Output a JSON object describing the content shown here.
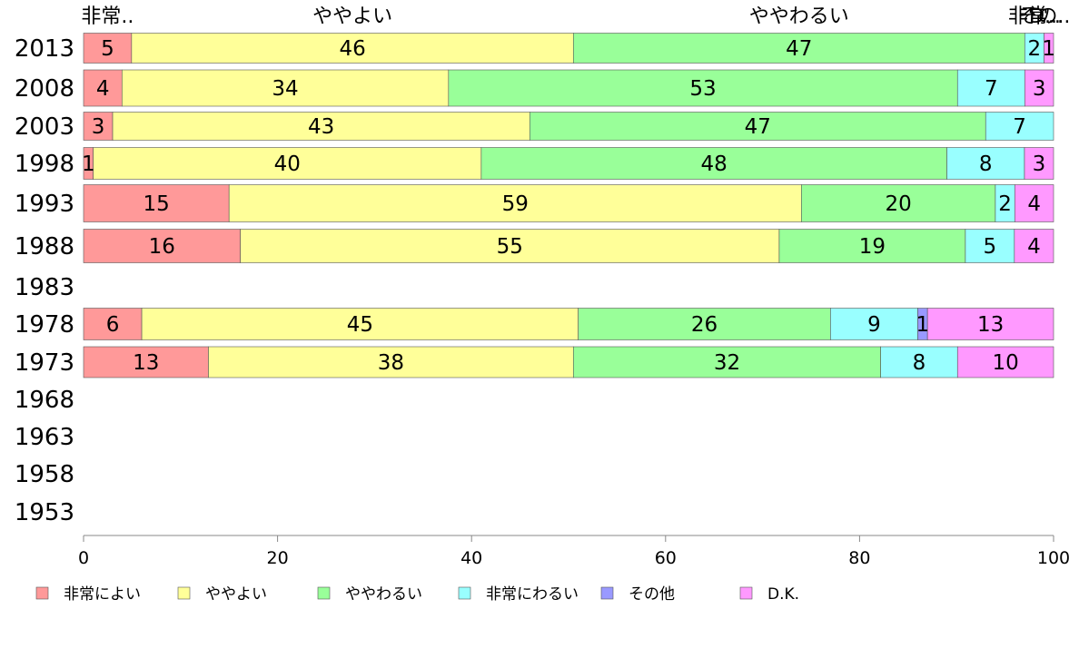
{
  "chart_data": {
    "type": "bar",
    "orientation": "horizontal",
    "stacked": true,
    "xlim": [
      0,
      100
    ],
    "x_ticks": [
      "0",
      "20",
      "40",
      "60",
      "80",
      "100"
    ],
    "categories": [
      "2013",
      "2008",
      "2003",
      "1998",
      "1993",
      "1988",
      "1983",
      "1978",
      "1973",
      "1968",
      "1963",
      "1958",
      "1953"
    ],
    "top_labels": [
      "非常..",
      "ややよい",
      "ややわるい",
      "非常..",
      "その..",
      "D..."
    ],
    "legend_position": "bottom",
    "series": [
      {
        "name": "非常によい",
        "color": "#ff9999",
        "values": [
          5,
          4,
          3,
          1,
          15,
          16,
          null,
          6,
          13,
          null,
          null,
          null,
          null
        ]
      },
      {
        "name": "ややよい",
        "color": "#ffff99",
        "values": [
          46,
          34,
          43,
          40,
          59,
          55,
          null,
          45,
          38,
          null,
          null,
          null,
          null
        ]
      },
      {
        "name": "ややわるい",
        "color": "#99ff99",
        "values": [
          47,
          53,
          47,
          48,
          20,
          19,
          null,
          26,
          32,
          null,
          null,
          null,
          null
        ]
      },
      {
        "name": "非常にわるい",
        "color": "#99ffff",
        "values": [
          2,
          7,
          7,
          8,
          2,
          5,
          null,
          9,
          8,
          null,
          null,
          null,
          null
        ]
      },
      {
        "name": "その他",
        "color": "#9999ff",
        "values": [
          0,
          0,
          0,
          0,
          0,
          0,
          null,
          1,
          0,
          null,
          null,
          null,
          null
        ]
      },
      {
        "name": "D.K.",
        "color": "#ff99ff",
        "values": [
          1,
          3,
          0,
          3,
          4,
          4,
          null,
          13,
          10,
          null,
          null,
          null,
          null
        ]
      }
    ]
  }
}
